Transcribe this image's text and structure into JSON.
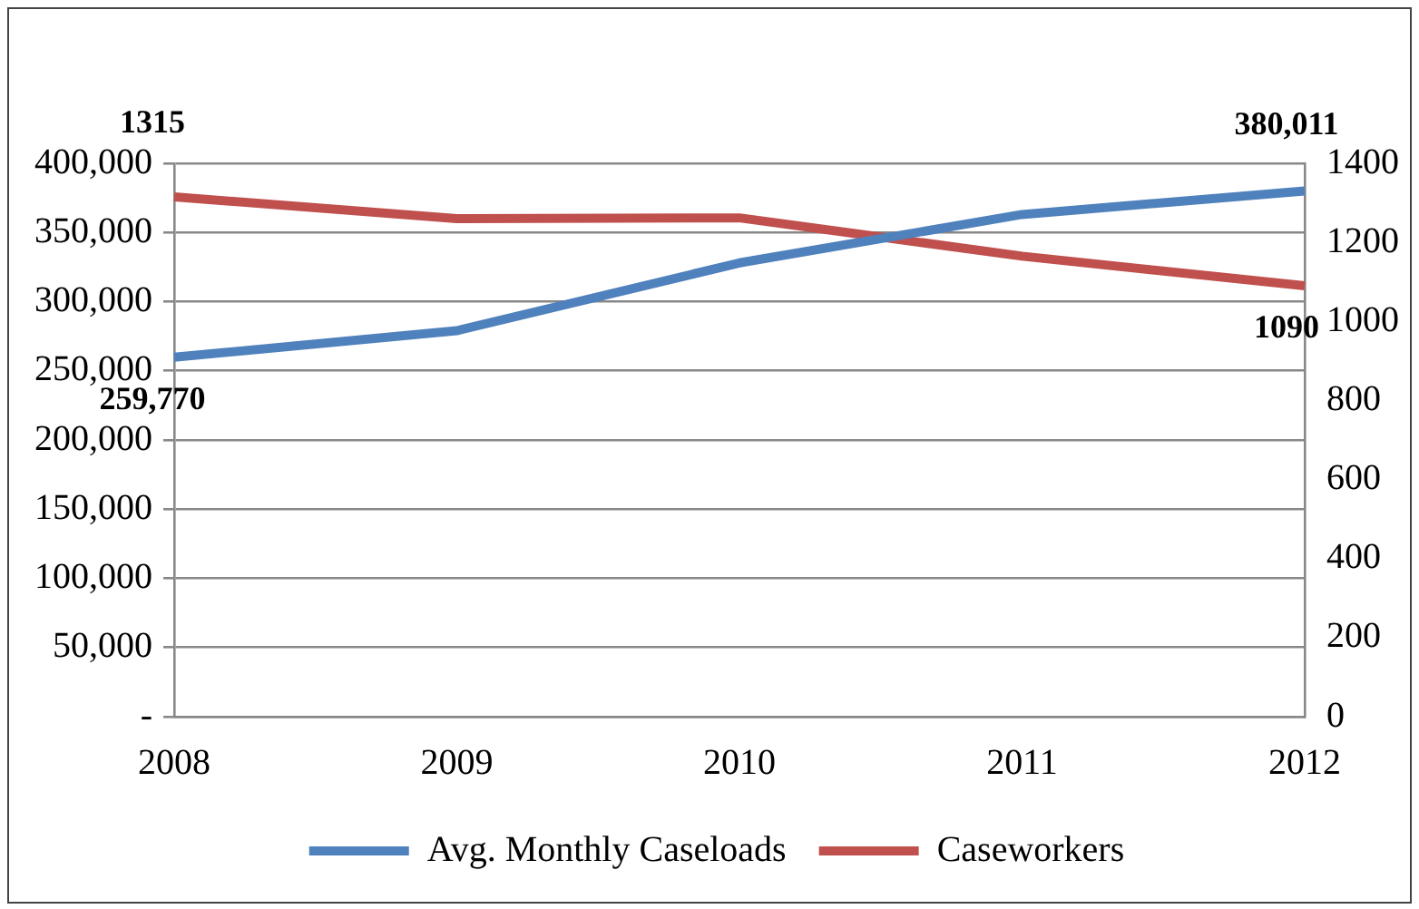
{
  "chart_data": {
    "type": "line",
    "categories": [
      "2008",
      "2009",
      "2010",
      "2011",
      "2012"
    ],
    "series": [
      {
        "name": "Avg. Monthly Caseloads",
        "color": "#4f81bd",
        "values": [
          259770,
          279000,
          328000,
          363000,
          380011
        ],
        "value_labels": [
          "259,770",
          null,
          null,
          null,
          "380,011"
        ]
      },
      {
        "name": "Caseworkers",
        "color": "#c0504d",
        "axis": "y2",
        "values": [
          1315,
          1260,
          1262,
          1165,
          1090
        ],
        "value_labels": [
          "1315",
          null,
          null,
          null,
          "1090"
        ]
      }
    ],
    "ylim": [
      0,
      400000
    ],
    "yticks": [
      {
        "value": 0,
        "label": "-"
      },
      {
        "value": 50000,
        "label": "50,000"
      },
      {
        "value": 100000,
        "label": "100,000"
      },
      {
        "value": 150000,
        "label": "150,000"
      },
      {
        "value": 200000,
        "label": "200,000"
      },
      {
        "value": 250000,
        "label": "250,000"
      },
      {
        "value": 300000,
        "label": "300,000"
      },
      {
        "value": 350000,
        "label": "350,000"
      },
      {
        "value": 400000,
        "label": "400,000"
      }
    ],
    "y2lim": [
      0,
      1400
    ],
    "y2ticks": [
      0,
      200,
      400,
      600,
      800,
      1000,
      1200,
      1400
    ],
    "grid": "y",
    "legend": "bottom",
    "marker": "none",
    "line_style": "solid"
  }
}
